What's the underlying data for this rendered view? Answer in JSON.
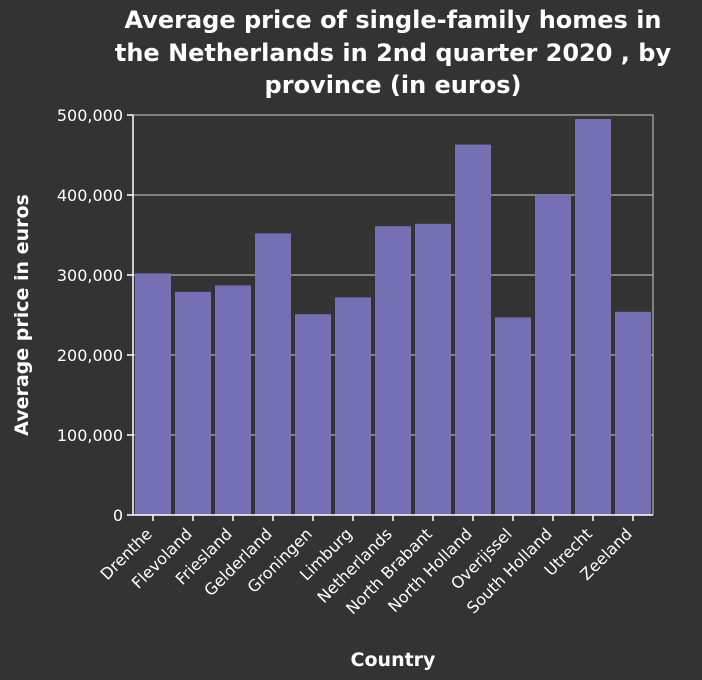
{
  "chart_data": {
    "type": "bar",
    "title": [
      "Average price of single-family homes in",
      "the Netherlands in 2nd quarter 2020 , by",
      "province (in euros)"
    ],
    "xlabel": "Country",
    "ylabel": "Average price in euros",
    "ylim": [
      0,
      500000
    ],
    "yticks": [
      0,
      100000,
      200000,
      300000,
      400000,
      500000
    ],
    "ytick_labels": [
      "0",
      "100,000",
      "200,000",
      "300,000",
      "400,000",
      "500,000"
    ],
    "grid": true,
    "categories": [
      "Drenthe",
      "Flevoland",
      "Friesland",
      "Gelderland",
      "Groningen",
      "Limburg",
      "Netherlands",
      "North Brabant",
      "North Holland",
      "Overijssel",
      "South Holland",
      "Utrecht",
      "Zeeland"
    ],
    "values": [
      302000,
      279000,
      287000,
      352000,
      251000,
      272000,
      361000,
      364000,
      463000,
      247000,
      400000,
      495000,
      254000
    ],
    "bar_color": "#7570b3",
    "background_color": "#333333",
    "text_color": "#ffffff"
  }
}
